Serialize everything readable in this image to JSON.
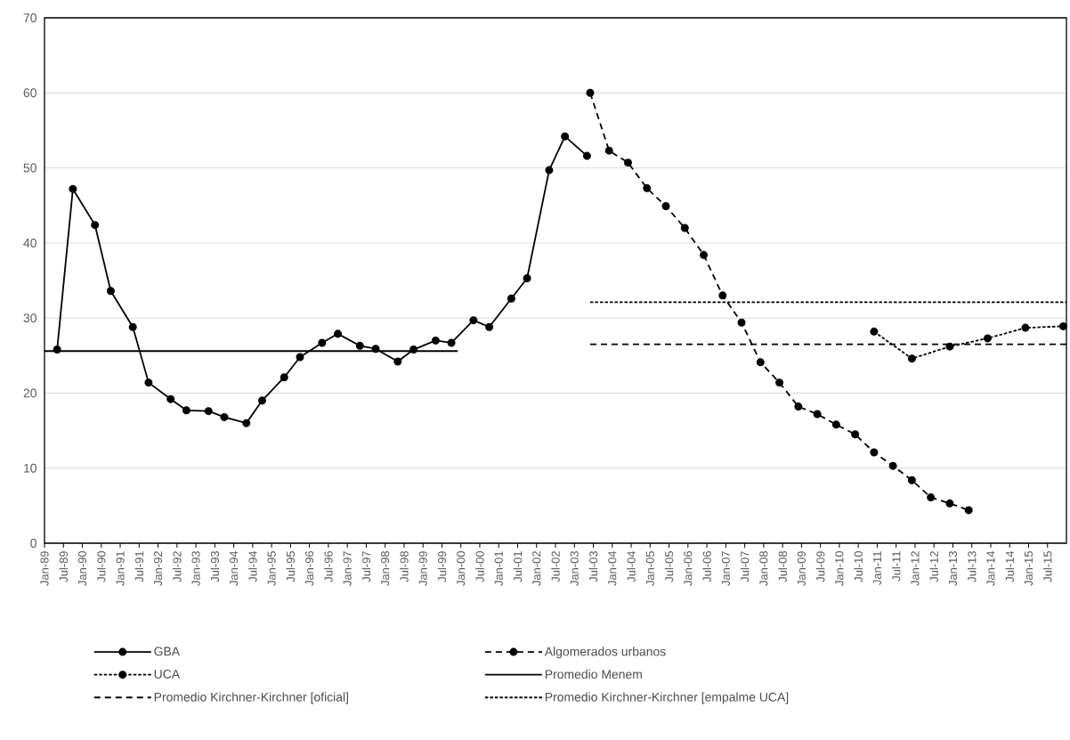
{
  "chart_data": {
    "type": "line",
    "xlim": [
      "1989-01",
      "2016-01"
    ],
    "ylim": [
      0,
      70
    ],
    "yticks": [
      0,
      10,
      20,
      30,
      40,
      50,
      60,
      70
    ],
    "grid": "y",
    "legend": "bottom",
    "xticks": [
      {
        "value": "1989-01",
        "label": "Jan-89"
      },
      {
        "value": "1989-07",
        "label": "Jul-89"
      },
      {
        "value": "1990-01",
        "label": "Jan-90"
      },
      {
        "value": "1990-07",
        "label": "Jul-90"
      },
      {
        "value": "1991-01",
        "label": "Jan-91"
      },
      {
        "value": "1991-07",
        "label": "Jul-91"
      },
      {
        "value": "1992-01",
        "label": "Jan-92"
      },
      {
        "value": "1992-07",
        "label": "Jul-92"
      },
      {
        "value": "1993-01",
        "label": "Jan-93"
      },
      {
        "value": "1993-07",
        "label": "Jul-93"
      },
      {
        "value": "1994-01",
        "label": "Jan-94"
      },
      {
        "value": "1994-07",
        "label": "Jul-94"
      },
      {
        "value": "1995-01",
        "label": "Jan-95"
      },
      {
        "value": "1995-07",
        "label": "Jul-95"
      },
      {
        "value": "1996-01",
        "label": "Jan-96"
      },
      {
        "value": "1996-07",
        "label": "Jul-96"
      },
      {
        "value": "1997-01",
        "label": "Jan-97"
      },
      {
        "value": "1997-07",
        "label": "Jul-97"
      },
      {
        "value": "1998-01",
        "label": "Jan-98"
      },
      {
        "value": "1998-07",
        "label": "Jul-98"
      },
      {
        "value": "1999-01",
        "label": "Jan-99"
      },
      {
        "value": "1999-07",
        "label": "Jul-99"
      },
      {
        "value": "2000-01",
        "label": "Jan-00"
      },
      {
        "value": "2000-07",
        "label": "Jul-00"
      },
      {
        "value": "2001-01",
        "label": "Jan-01"
      },
      {
        "value": "2001-07",
        "label": "Jul-01"
      },
      {
        "value": "2002-01",
        "label": "Jan-02"
      },
      {
        "value": "2002-07",
        "label": "Jul-02"
      },
      {
        "value": "2003-01",
        "label": "Jan-03"
      },
      {
        "value": "2003-07",
        "label": "Jul-03"
      },
      {
        "value": "2004-01",
        "label": "Jan-04"
      },
      {
        "value": "2004-07",
        "label": "Jul-04"
      },
      {
        "value": "2005-01",
        "label": "Jan-05"
      },
      {
        "value": "2005-07",
        "label": "Jul-05"
      },
      {
        "value": "2006-01",
        "label": "Jan-06"
      },
      {
        "value": "2006-07",
        "label": "Jul-06"
      },
      {
        "value": "2007-01",
        "label": "Jan-07"
      },
      {
        "value": "2007-07",
        "label": "Jul-07"
      },
      {
        "value": "2008-01",
        "label": "Jan-08"
      },
      {
        "value": "2008-07",
        "label": "Jul-08"
      },
      {
        "value": "2009-01",
        "label": "Jan-09"
      },
      {
        "value": "2009-07",
        "label": "Jul-09"
      },
      {
        "value": "2010-01",
        "label": "Jan-10"
      },
      {
        "value": "2010-07",
        "label": "Jul-10"
      },
      {
        "value": "2011-01",
        "label": "Jan-11"
      },
      {
        "value": "2011-07",
        "label": "Jul-11"
      },
      {
        "value": "2012-01",
        "label": "Jan-12"
      },
      {
        "value": "2012-07",
        "label": "Jul-12"
      },
      {
        "value": "2013-01",
        "label": "Jan-13"
      },
      {
        "value": "2013-07",
        "label": "Jul-13"
      },
      {
        "value": "2014-01",
        "label": "Jan-14"
      },
      {
        "value": "2014-07",
        "label": "Jul-14"
      },
      {
        "value": "2015-01",
        "label": "Jan-15"
      },
      {
        "value": "2015-07",
        "label": "Jul-15"
      }
    ],
    "series": [
      {
        "name": "GBA",
        "color": "#000000",
        "marker": "circle",
        "line_style": "solid",
        "x": [
          "1989-05",
          "1989-10",
          "1990-05",
          "1990-10",
          "1991-05",
          "1991-10",
          "1992-05",
          "1992-10",
          "1993-05",
          "1993-10",
          "1994-05",
          "1994-10",
          "1995-05",
          "1995-10",
          "1996-05",
          "1996-10",
          "1997-05",
          "1997-10",
          "1998-05",
          "1998-10",
          "1999-05",
          "1999-10",
          "2000-05",
          "2000-10",
          "2001-05",
          "2001-10",
          "2002-05",
          "2002-10",
          "2003-05"
        ],
        "values": [
          25.8,
          47.2,
          42.4,
          33.6,
          28.8,
          21.4,
          19.2,
          17.7,
          17.6,
          16.8,
          16.0,
          19.0,
          22.1,
          24.8,
          26.7,
          27.9,
          26.3,
          25.9,
          24.2,
          25.8,
          27.0,
          26.7,
          29.7,
          28.8,
          32.6,
          35.3,
          49.7,
          54.2,
          51.6
        ]
      },
      {
        "name": "Algomerados urbanos",
        "color": "#000000",
        "marker": "circle",
        "line_style": "dashed",
        "x": [
          "2003-06",
          "2003-12",
          "2004-06",
          "2004-12",
          "2005-06",
          "2005-12",
          "2006-06",
          "2006-12",
          "2007-06",
          "2007-12",
          "2008-06",
          "2008-12",
          "2009-06",
          "2009-12",
          "2010-06",
          "2010-12",
          "2011-06",
          "2011-12",
          "2012-06",
          "2012-12",
          "2013-06"
        ],
        "values": [
          60.0,
          52.3,
          50.7,
          47.3,
          44.9,
          42.0,
          38.4,
          33.0,
          29.4,
          24.1,
          21.4,
          18.2,
          17.2,
          15.8,
          14.5,
          12.1,
          10.3,
          8.4,
          6.1,
          5.3,
          4.4
        ]
      },
      {
        "name": "UCA",
        "color": "#000000",
        "marker": "circle",
        "line_style": "dotted",
        "x": [
          "2010-12",
          "2011-12",
          "2012-12",
          "2013-12",
          "2014-12",
          "2015-12"
        ],
        "values": [
          28.2,
          24.6,
          26.2,
          27.3,
          28.7,
          28.9
        ]
      },
      {
        "name": "Promedio Menem",
        "color": "#000000",
        "marker": "none",
        "line_style": "solid",
        "x": [
          "1989-01",
          "1999-12"
        ],
        "values": [
          25.6,
          25.6
        ]
      },
      {
        "name": "Promedio Kirchner-Kirchner [oficial]",
        "color": "#000000",
        "marker": "none",
        "line_style": "dashed",
        "x": [
          "2003-06",
          "2016-01"
        ],
        "values": [
          26.5,
          26.5
        ]
      },
      {
        "name": "Promedio Kirchner-Kirchner [empalme UCA]",
        "color": "#000000",
        "marker": "none",
        "line_style": "dotted",
        "x": [
          "2003-06",
          "2016-01"
        ],
        "values": [
          32.1,
          32.1
        ]
      }
    ]
  }
}
